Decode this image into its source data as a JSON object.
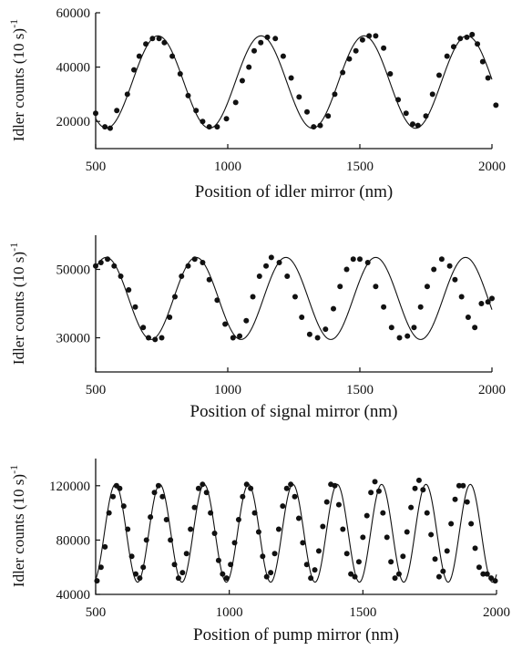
{
  "chart_data": [
    {
      "type": "scatter",
      "xlabel": "Position of idler mirror (nm)",
      "ylabel_main": "Idler counts (10 s)",
      "ylabel_exp": "-1",
      "xlim": [
        500,
        2000
      ],
      "ylim": [
        10000,
        60000
      ],
      "x_ticks": [
        500,
        1000,
        1500,
        2000
      ],
      "y_ticks": [
        20000,
        40000,
        60000
      ],
      "fit": {
        "mean": 34500,
        "amplitude": 17000,
        "period": 390,
        "peak_at": 736
      },
      "series": [
        {
          "kind": "points",
          "x": [
            500,
            535,
            555,
            580,
            620,
            645,
            665,
            690,
            715,
            740,
            760,
            790,
            820,
            850,
            880,
            905,
            930,
            960,
            995,
            1030,
            1055,
            1080,
            1100,
            1125,
            1150,
            1180,
            1210,
            1240,
            1270,
            1300,
            1325,
            1350,
            1380,
            1405,
            1435,
            1460,
            1485,
            1510,
            1535,
            1560,
            1590,
            1615,
            1645,
            1675,
            1700,
            1720,
            1750,
            1775,
            1800,
            1830,
            1855,
            1880,
            1905,
            1925,
            1945,
            1965,
            1985,
            2015
          ],
          "y": [
            23000,
            18000,
            17500,
            24000,
            30000,
            39000,
            44000,
            48500,
            50500,
            50500,
            49000,
            44000,
            37500,
            29500,
            24000,
            20000,
            18000,
            18000,
            21000,
            27000,
            35000,
            40000,
            46000,
            49000,
            51000,
            50500,
            44000,
            36000,
            29000,
            23500,
            18000,
            18500,
            22000,
            30000,
            38000,
            43000,
            46000,
            50000,
            51500,
            51500,
            47000,
            37500,
            28000,
            23000,
            19000,
            18500,
            22000,
            30000,
            37000,
            44000,
            47500,
            50500,
            51000,
            52000,
            48500,
            42000,
            36000,
            26000
          ]
        }
      ]
    },
    {
      "type": "scatter",
      "xlabel": "Position of signal mirror (nm)",
      "ylabel_main": "Idler counts (10 s)",
      "ylabel_exp": "-1",
      "xlim": [
        500,
        2000
      ],
      "ylim": [
        20000,
        60000
      ],
      "x_ticks": [
        500,
        1000,
        1500,
        2000
      ],
      "y_ticks": [
        30000,
        50000
      ],
      "fit": {
        "mean": 41500,
        "amplitude": 12000,
        "period": 340,
        "peak_at": 540
      },
      "series": [
        {
          "kind": "points",
          "x": [
            500,
            520,
            545,
            570,
            595,
            625,
            650,
            680,
            700,
            725,
            750,
            780,
            800,
            825,
            850,
            875,
            905,
            930,
            960,
            990,
            1020,
            1045,
            1070,
            1095,
            1120,
            1145,
            1165,
            1195,
            1225,
            1255,
            1280,
            1310,
            1340,
            1370,
            1400,
            1425,
            1450,
            1475,
            1500,
            1530,
            1560,
            1590,
            1620,
            1650,
            1680,
            1705,
            1730,
            1755,
            1780,
            1810,
            1840,
            1860,
            1885,
            1910,
            1935,
            1960,
            1985,
            2000
          ],
          "y": [
            51000,
            52000,
            53000,
            51000,
            48000,
            44000,
            39000,
            33000,
            30000,
            29500,
            30000,
            36000,
            42000,
            48000,
            51000,
            53000,
            52000,
            47000,
            41000,
            34000,
            30000,
            30500,
            35000,
            42000,
            48000,
            51000,
            53500,
            52000,
            48000,
            42000,
            36000,
            31000,
            30000,
            32500,
            38500,
            45000,
            50000,
            53000,
            53000,
            52000,
            45000,
            39000,
            33000,
            30000,
            30500,
            33000,
            39000,
            45000,
            50000,
            53000,
            51000,
            47000,
            42000,
            36000,
            33000,
            40000,
            40500,
            41500
          ]
        }
      ]
    },
    {
      "type": "scatter",
      "xlabel": "Position of pump mirror (nm)",
      "ylabel_main": "Idler counts (10 s)",
      "ylabel_exp": "-1",
      "xlim": [
        500,
        2000
      ],
      "ylim": [
        40000,
        140000
      ],
      "x_ticks": [
        500,
        1000,
        1500,
        2000
      ],
      "y_ticks": [
        40000,
        80000,
        120000
      ],
      "fit": {
        "mean": 85000,
        "amplitude": 36000,
        "period": 166,
        "peak_at": 574
      },
      "series": [
        {
          "kind": "points",
          "x": [
            505,
            520,
            535,
            550,
            565,
            578,
            590,
            605,
            620,
            635,
            650,
            665,
            678,
            690,
            705,
            720,
            735,
            750,
            765,
            780,
            795,
            810,
            825,
            840,
            855,
            870,
            885,
            900,
            915,
            930,
            945,
            960,
            975,
            990,
            1005,
            1020,
            1035,
            1050,
            1065,
            1080,
            1095,
            1110,
            1125,
            1140,
            1155,
            1170,
            1185,
            1200,
            1215,
            1230,
            1245,
            1260,
            1275,
            1290,
            1305,
            1320,
            1335,
            1350,
            1365,
            1380,
            1395,
            1410,
            1425,
            1440,
            1455,
            1470,
            1485,
            1500,
            1515,
            1530,
            1545,
            1560,
            1575,
            1590,
            1605,
            1620,
            1635,
            1650,
            1665,
            1680,
            1695,
            1710,
            1725,
            1740,
            1755,
            1770,
            1785,
            1800,
            1815,
            1830,
            1845,
            1860,
            1875,
            1890,
            1905,
            1920,
            1935,
            1950,
            1965,
            1980,
            1995
          ],
          "y": [
            50000,
            60000,
            75000,
            100000,
            112000,
            120000,
            118000,
            105000,
            88000,
            68000,
            55000,
            52000,
            60000,
            80000,
            97000,
            115000,
            120000,
            112000,
            95000,
            80000,
            62000,
            52000,
            56000,
            70000,
            88000,
            104000,
            118000,
            121000,
            115000,
            100000,
            85000,
            65000,
            55000,
            52000,
            62000,
            78000,
            95000,
            112000,
            121000,
            118000,
            100000,
            86000,
            68000,
            53000,
            56000,
            70000,
            88000,
            105000,
            118000,
            121000,
            112000,
            96000,
            78000,
            62000,
            52000,
            58000,
            72000,
            90000,
            108000,
            121000,
            120000,
            106000,
            88000,
            70000,
            55000,
            53000,
            64000,
            82000,
            98000,
            115000,
            123000,
            116000,
            100000,
            82000,
            64000,
            52000,
            55000,
            68000,
            86000,
            104000,
            118000,
            124000,
            117000,
            100000,
            84000,
            66000,
            53000,
            57000,
            72000,
            92000,
            110000,
            120000,
            120000,
            108000,
            92000,
            74000,
            60000,
            55000,
            55000,
            52000,
            50000
          ]
        }
      ]
    }
  ]
}
